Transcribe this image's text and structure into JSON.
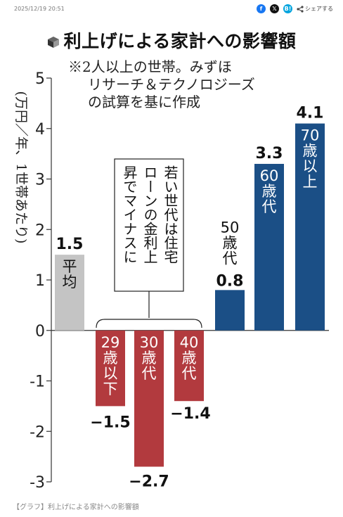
{
  "header": {
    "timestamp": "2025/12/19 20:51",
    "share_label": "シェアする",
    "icons": [
      "facebook-icon",
      "x-icon",
      "hatena-icon",
      "share-icon"
    ]
  },
  "title": "利上げによる家計への影響額",
  "note": [
    "※2人以上の世帯。みずほ",
    "リサーチ＆テクノロジーズ",
    "の試算を基に作成"
  ],
  "annotation": [
    "若い世代は住宅",
    "ローンの金利上",
    "昇でマイナスに"
  ],
  "caption": "【グラフ】利上げによる家計への影響額",
  "colors": {
    "average": "#c4c4c4",
    "negative": "#b23a3e",
    "positive": "#1b4f86"
  },
  "chart_data": {
    "type": "bar",
    "title": "利上げによる家計への影響額",
    "ylabel": "(万円／年、1世帯あたり)",
    "ylim": [
      -3,
      5
    ],
    "yticks": [
      "-3",
      "-2",
      "-1",
      "0",
      "1",
      "2",
      "3",
      "4",
      "5"
    ],
    "grid": false,
    "categories": [
      "平均",
      "29歳以下",
      "30歳代",
      "40歳代",
      "50歳代",
      "60歳代",
      "70歳以上"
    ],
    "values": [
      1.5,
      -1.5,
      -2.7,
      -1.4,
      0.8,
      3.3,
      4.1
    ],
    "value_labels": [
      "1.5",
      "−1.5",
      "−2.7",
      "−1.4",
      "0.8",
      "3.3",
      "4.1"
    ]
  }
}
